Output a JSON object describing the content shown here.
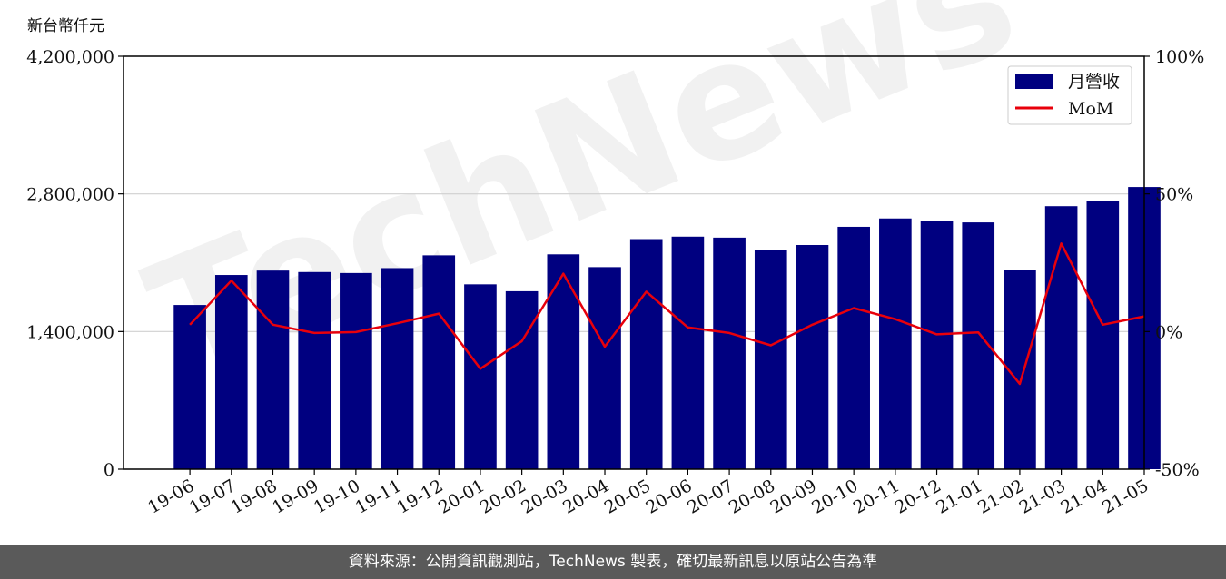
{
  "unit_label": "新台幣仟元",
  "footer_text": "資料來源：公開資訊觀測站，TechNews 製表，確切最新訊息以原站公告為準",
  "watermark": "TechNews",
  "colors": {
    "bar": "#000080",
    "line": "#e8000b",
    "grid": "#d0d0d0",
    "footer_bg": "#5a5a5a"
  },
  "chart_data": {
    "type": "bar",
    "categories": [
      "19-06",
      "19-07",
      "19-08",
      "19-09",
      "19-10",
      "19-11",
      "19-12",
      "20-01",
      "20-02",
      "20-03",
      "20-04",
      "20-05",
      "20-06",
      "20-07",
      "20-08",
      "20-09",
      "20-10",
      "20-11",
      "20-12",
      "21-01",
      "21-02",
      "21-03",
      "21-04",
      "21-05"
    ],
    "series": [
      {
        "name": "月營收",
        "type": "bar",
        "axis": "left",
        "values": [
          1670000,
          1975000,
          2020000,
          2005000,
          1995000,
          2045000,
          2175000,
          1880000,
          1810000,
          2185000,
          2055000,
          2340000,
          2365000,
          2355000,
          2230000,
          2280000,
          2465000,
          2550000,
          2520000,
          2510000,
          2030000,
          2675000,
          2730000,
          2870000
        ]
      },
      {
        "name": "MoM",
        "type": "line",
        "axis": "right",
        "values": [
          2.5,
          18.5,
          2.5,
          -0.5,
          -0.2,
          3.0,
          6.5,
          -13.5,
          -3.5,
          21.0,
          -5.5,
          14.5,
          1.5,
          -0.5,
          -5.0,
          2.5,
          8.5,
          4.5,
          -1.0,
          -0.3,
          -19.0,
          32.0,
          2.5,
          5.5
        ]
      }
    ],
    "y_left": {
      "lim": [
        0,
        4200000
      ],
      "ticks": [
        0,
        1400000,
        2800000,
        4200000
      ],
      "tick_labels": [
        "0",
        "1,400,000",
        "2,800,000",
        "4,200,000"
      ]
    },
    "y_right": {
      "lim": [
        -50,
        100
      ],
      "ticks": [
        -50,
        0,
        50,
        100
      ],
      "tick_labels": [
        "-50%",
        "0%",
        "50%",
        "100%"
      ]
    },
    "grid": "horizontal",
    "legend": {
      "position": "top-right",
      "entries": [
        "月營收",
        "MoM"
      ]
    }
  }
}
